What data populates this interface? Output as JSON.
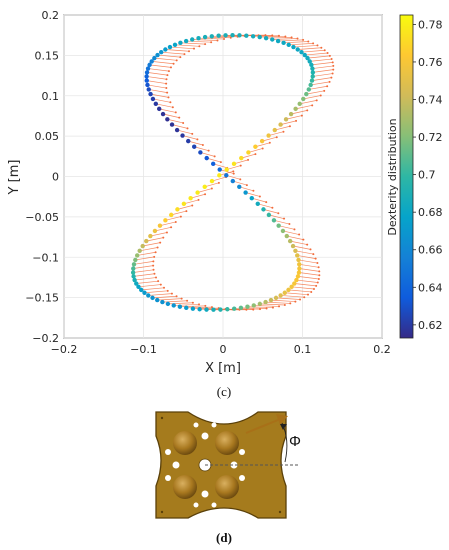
{
  "chart_data": {
    "type": "scatter",
    "title": "",
    "xlabel": "X [m]",
    "ylabel": "Y [m]",
    "xlim": [
      -0.2,
      0.2
    ],
    "ylim": [
      -0.2,
      0.2
    ],
    "x_ticks": [
      "−0.2",
      "−0.1",
      "0",
      "0.1",
      "0.2"
    ],
    "y_ticks": [
      "−0.2",
      "−0.15",
      "−0.1",
      "−0.05",
      "0",
      "0.05",
      "0.1",
      "0.15",
      "0.2"
    ],
    "grid": true,
    "colorbar": {
      "label": "Dexterity distribution",
      "range": [
        0.613,
        0.785
      ],
      "ticks": [
        "0.62",
        "0.64",
        "0.66",
        "0.68",
        "0.7",
        "0.72",
        "0.74",
        "0.76",
        "0.78"
      ],
      "colormap": "parula",
      "colors": [
        "#352a87",
        "#0f5cdd",
        "#1481d6",
        "#06a4ca",
        "#2eb7a4",
        "#87bf77",
        "#d1bb59",
        "#fec832",
        "#f9fb0e"
      ]
    },
    "trajectory": {
      "shape": "figure-eight",
      "x_amplitude": 0.11,
      "x_center": 0.0,
      "y_amplitude": 0.17,
      "y_center": 0.005,
      "arrow_color": "#f26b3a",
      "arrow_note": "orientation vectors drawn along path"
    }
  },
  "captions": {
    "c": "(c)",
    "d": "(d)",
    "phi": "Φ"
  },
  "colors": {
    "plate_fill": "#a67c1e",
    "plate_edge": "#6b4e10",
    "dome": "#b0822c",
    "arrow": "#a87018"
  }
}
